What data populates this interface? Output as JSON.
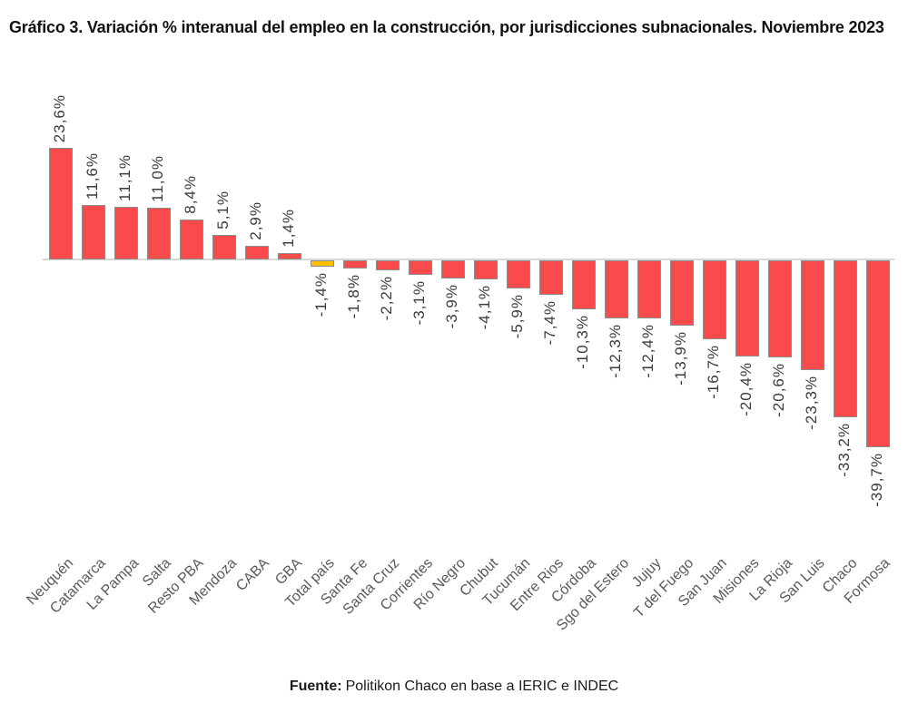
{
  "title": "Gráfico 3. Variación % interanual del empleo en la construcción, por jurisdicciones subnacionales. Noviembre 2023",
  "source": {
    "label": "Fuente:",
    "text": "Politikon Chaco en base a IERIC e INDEC"
  },
  "colors": {
    "bar_fill": "#f94b4b",
    "bar_highlight_fill": "#ffc000",
    "bar_border": "#8c8c8c",
    "axis_line": "#d8d8d8",
    "value_label": "#3b3b3b",
    "category_label": "#595959",
    "title_text": "#111111"
  },
  "chart_data": {
    "type": "bar",
    "title": "Gráfico 3. Variación % interanual del empleo en la construcción, por jurisdicciones subnacionales. Noviembre 2023",
    "xlabel": "",
    "ylabel": "",
    "grid": false,
    "legend": false,
    "ylim": [
      -45,
      28
    ],
    "unit": "%",
    "highlighted_category": "Total país",
    "categories": [
      "Neuquén",
      "Catamarca",
      "La Pampa",
      "Salta",
      "Resto PBA",
      "Mendoza",
      "CABA",
      "GBA",
      "Total país",
      "Santa Fe",
      "Santa Cruz",
      "Corrientes",
      "Río Negro",
      "Chubut",
      "Tucumán",
      "Entre Rios",
      "Córdoba",
      "Sgo del Estero",
      "Jujuy",
      "T del Fuego",
      "San Juan",
      "Misiones",
      "La Rioja",
      "San Luis",
      "Chaco",
      "Formosa"
    ],
    "values": [
      23.6,
      11.6,
      11.1,
      11.0,
      8.4,
      5.1,
      2.9,
      1.4,
      -1.4,
      -1.8,
      -2.2,
      -3.1,
      -3.9,
      -4.1,
      -5.9,
      -7.4,
      -10.3,
      -12.3,
      -12.4,
      -13.9,
      -16.7,
      -20.4,
      -20.6,
      -23.3,
      -33.2,
      -39.7
    ],
    "value_labels": [
      "23,6%",
      "11,6%",
      "11,1%",
      "11,0%",
      "8,4%",
      "5,1%",
      "2,9%",
      "1,4%",
      "-1,4%",
      "-1,8%",
      "-2,2%",
      "-3,1%",
      "-3,9%",
      "-4,1%",
      "-5,9%",
      "-7,4%",
      "-10,3%",
      "-12,3%",
      "-12,4%",
      "-13,9%",
      "-16,7%",
      "-20,4%",
      "-20,6%",
      "-23,3%",
      "-33,2%",
      "-39,7%"
    ]
  }
}
